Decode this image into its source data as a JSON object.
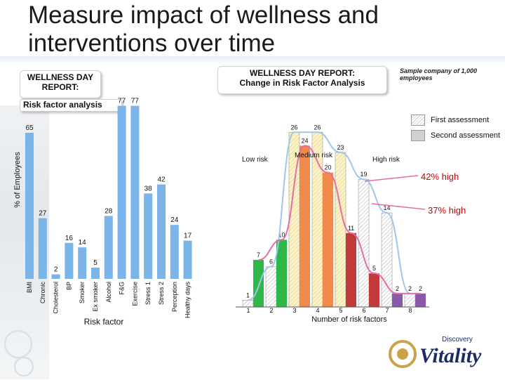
{
  "page": {
    "title_line1": "Measure impact of wellness and",
    "title_line2": "interventions over time",
    "box_left": "WELLNESS DAY REPORT:",
    "box_right_line1": "WELLNESS DAY REPORT:",
    "box_right_line2": "Change in Risk Factor Analysis",
    "subtitle": "Risk factor analysis",
    "sample_note": "Sample company of 1,000 employees",
    "y_axis_label": "% of Employees",
    "legend_first": "First assessment",
    "legend_second": "Second assessment",
    "label_low": "Low risk",
    "label_medium": "Medium risk",
    "label_high": "High risk",
    "pct_42": "42% high",
    "pct_37": "37% high",
    "logo_small": "Discovery",
    "logo_big": "Vitality",
    "colors": {
      "left_bar": "#7ab4e8",
      "orange": "#f08a4b",
      "yellow_hatch": "#f5e6a0",
      "green": "#2eb84a",
      "red": "#c03a3a",
      "purple": "#8a5aa8",
      "curve1": "#9fc7ee",
      "curve2": "#e86aa8",
      "pct_text": "#cc0000"
    }
  },
  "chart_data": [
    {
      "type": "bar",
      "title": "",
      "xlabel": "Risk factor",
      "ylabel": "% of Employees",
      "categories": [
        "BMI",
        "Chronic",
        "Cholesterol",
        "BP",
        "Smoker",
        "Ex smoker",
        "Alcohol",
        "F&G",
        "Exercise",
        "Stress 1",
        "Stress 2",
        "Perception",
        "Healthy days"
      ],
      "values": [
        65,
        27,
        2,
        16,
        14,
        5,
        28,
        77,
        77,
        38,
        42,
        24,
        17
      ],
      "ylim": [
        0,
        85
      ]
    },
    {
      "type": "bar",
      "title": "Change in Risk Factor Analysis",
      "xlabel": "Number of risk factors",
      "categories": [
        "1",
        "2",
        "3",
        "4",
        "5",
        "6",
        "7",
        "8"
      ],
      "series": [
        {
          "name": "First assessment",
          "values": [
            1,
            6,
            26,
            26,
            23,
            19,
            14,
            2
          ]
        },
        {
          "name": "Second assessment",
          "values": [
            7,
            10,
            24,
            20,
            11,
            5,
            2,
            2
          ]
        }
      ],
      "ylim": [
        0,
        30
      ]
    }
  ]
}
